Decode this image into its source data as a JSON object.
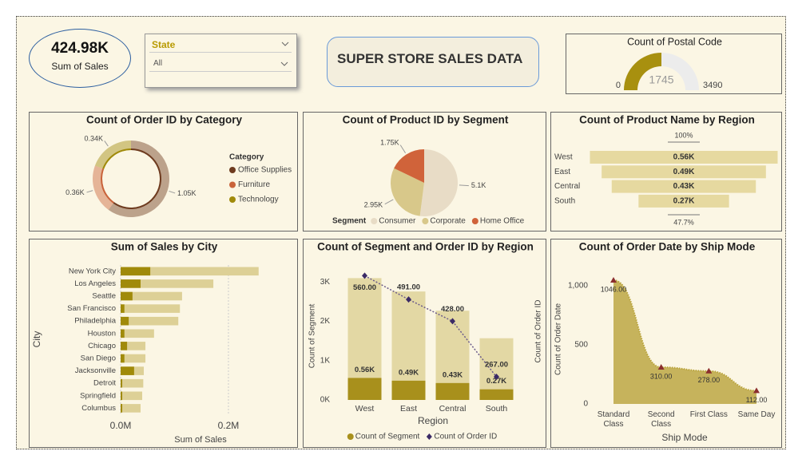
{
  "kpi": {
    "value": "424.98K",
    "label": "Sum of Sales"
  },
  "slicer": {
    "label": "State",
    "selected": "All"
  },
  "header": {
    "title": "SUPER STORE SALES DATA"
  },
  "chart_data": [
    {
      "type": "gauge",
      "title": "Count of Postal Code",
      "value": 1745,
      "min": 0,
      "max": 3490,
      "color": "#a8900f",
      "track_color": "#ececec"
    },
    {
      "type": "donut",
      "title": "Count of Order ID by Category",
      "legend_title": "Category",
      "categories": [
        "Office Supplies",
        "Furniture",
        "Technology"
      ],
      "values": [
        1050,
        360,
        340
      ],
      "value_labels": [
        "1.05K",
        "0.36K",
        "0.34K"
      ],
      "colors": [
        "#6e3b1f",
        "#c9633a",
        "#a08a0a"
      ]
    },
    {
      "type": "pie",
      "title": "Count of Product ID by Segment",
      "legend_title": "Segment",
      "categories": [
        "Consumer",
        "Corporate",
        "Home Office"
      ],
      "values": [
        5100,
        2950,
        1750
      ],
      "value_labels": [
        "5.1K",
        "2.95K",
        "1.75K"
      ],
      "colors": [
        "#e8dcc6",
        "#d8c88a",
        "#d0633a"
      ]
    },
    {
      "type": "funnel",
      "title": "Count of Product Name by Region",
      "categories": [
        "West",
        "East",
        "Central",
        "South"
      ],
      "values": [
        560,
        490,
        430,
        270
      ],
      "value_labels": [
        "0.56K",
        "0.49K",
        "0.43K",
        "0.27K"
      ],
      "top_label": "100%",
      "bottom_label": "47.7%",
      "color": "#e6d9a0"
    },
    {
      "type": "bar",
      "orientation": "horizontal",
      "title": "Sum of Sales by City",
      "x_label": "Sum of Sales",
      "y_label": "City",
      "categories": [
        "New York City",
        "Los Angeles",
        "Seattle",
        "San Francisco",
        "Philadelphia",
        "Houston",
        "Chicago",
        "San Diego",
        "Jacksonville",
        "Detroit",
        "Springfield",
        "Columbus"
      ],
      "series": [
        {
          "color": "#ddd096",
          "values": [
            256000,
            172000,
            114000,
            110000,
            107000,
            62000,
            46000,
            46000,
            43000,
            42000,
            40000,
            37000
          ]
        },
        {
          "color": "#a08a0a",
          "values": [
            55000,
            37000,
            22000,
            7000,
            15000,
            7000,
            12000,
            7000,
            25000,
            3000,
            3000,
            3000
          ]
        }
      ],
      "xlim": [
        0,
        326000
      ],
      "xticks": [
        {
          "value": 0,
          "label": "0.0M"
        },
        {
          "value": 200000,
          "label": "0.2M"
        }
      ],
      "grid": true
    },
    {
      "type": "combo",
      "title": "Count of Segment and Order ID by Region",
      "x_label": "Region",
      "y_label": "Count of Segment",
      "y2_label": "Count of Order ID",
      "categories": [
        "West",
        "East",
        "Central",
        "South"
      ],
      "series": [
        {
          "type": "bar",
          "color": "#e3d8a4",
          "values": [
            3100,
            2760,
            2270,
            1570
          ]
        },
        {
          "type": "bar",
          "name": "Count of Segment",
          "color": "#a8901c",
          "values": [
            560,
            490,
            430,
            270
          ],
          "value_labels": [
            "0.56K",
            "0.49K",
            "0.43K",
            "0.27K"
          ]
        },
        {
          "type": "line",
          "name": "Count of Order ID",
          "axis": "y2",
          "color": "#6a5a8a",
          "marker_color": "#3b2a66",
          "values": [
            560,
            491,
            428,
            267
          ],
          "value_labels": [
            "560.00",
            "491.00",
            "428.00",
            "267.00"
          ]
        }
      ],
      "ylim": [
        0,
        3250
      ],
      "yticks": [
        {
          "value": 0,
          "label": "0K"
        },
        {
          "value": 1000,
          "label": "1K"
        },
        {
          "value": 2000,
          "label": "2K"
        },
        {
          "value": 3000,
          "label": "3K"
        }
      ],
      "y2lim": [
        200,
        570
      ]
    },
    {
      "type": "area",
      "title": "Count of Order Date by Ship Mode",
      "x_label": "Ship Mode",
      "y_label": "Count of Order Date",
      "categories": [
        "Standard Class",
        "Second Class",
        "First Class",
        "Same Day"
      ],
      "values": [
        1046,
        310,
        278,
        112
      ],
      "value_labels": [
        "1046.00",
        "310.00",
        "278.00",
        "112.00"
      ],
      "color": "#b9a33a",
      "marker_color": "#8b2e2e",
      "ylim": [
        0,
        1120
      ],
      "yticks": [
        0,
        500,
        {
          "value": 1000,
          "label": "1,000"
        }
      ]
    }
  ]
}
